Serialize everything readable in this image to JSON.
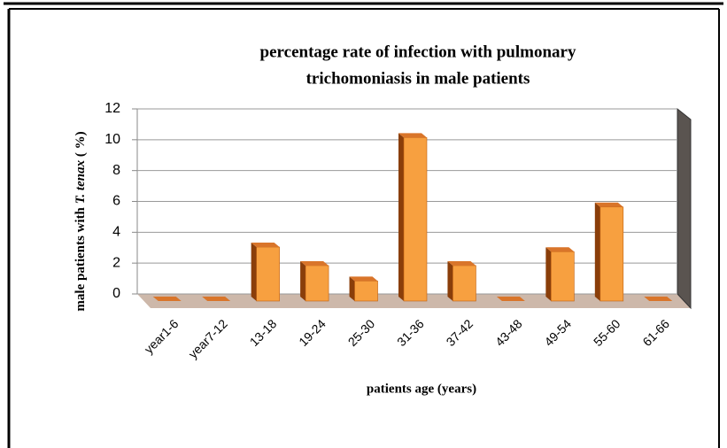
{
  "chart_data": {
    "type": "bar3d",
    "title": [
      "percentage rate of infection with pulmonary",
      "trichomoniasis in male patients"
    ],
    "y_label": [
      "male patients with ",
      "T. tenax",
      " ( %)"
    ],
    "x_label": "patients age (years)",
    "categories": [
      "year1-6",
      "year7-12",
      "13-18",
      "19-24",
      "25-30",
      "31-36",
      "37-42",
      "43-48",
      "49-54",
      "55-60",
      "61-66"
    ],
    "values": [
      0,
      0,
      3.5,
      2.3,
      1.3,
      10.6,
      2.3,
      0,
      3.2,
      6.1,
      0
    ],
    "color": "#f7a040",
    "ylim": [
      0,
      12
    ],
    "yticks": [
      0,
      2,
      4,
      6,
      8,
      10,
      12
    ],
    "grid": true
  }
}
